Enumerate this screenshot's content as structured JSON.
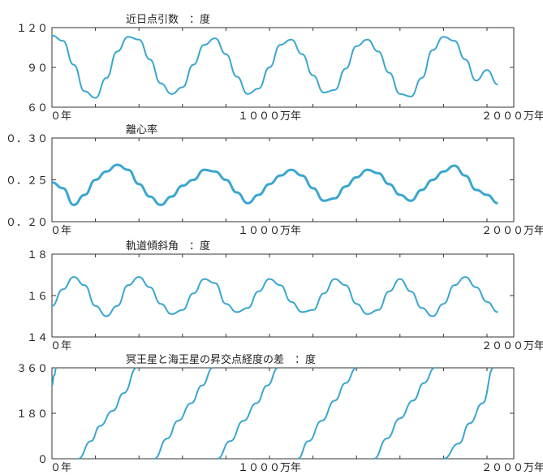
{
  "chart_data": [
    {
      "type": "line",
      "title": "近日点引数　：度",
      "ylim": [
        60,
        120
      ],
      "yticks": [
        {
          "v": 120,
          "label": "１２０"
        },
        {
          "v": 90,
          "label": "９０"
        },
        {
          "v": 60,
          "label": "６０"
        }
      ],
      "xlim": [
        0,
        2000
      ],
      "xticks": [
        {
          "v": 0,
          "label": "０年"
        },
        {
          "v": 1000,
          "label": "１０００万年"
        },
        {
          "v": 2000,
          "label": "２０００万年"
        }
      ],
      "series": [
        {
          "x": [
            0,
            50,
            100,
            150,
            200,
            250,
            300,
            350,
            400,
            450,
            500,
            550,
            600,
            650,
            700,
            750,
            800,
            850,
            900,
            950,
            1000,
            1050,
            1100,
            1150,
            1200,
            1250,
            1300,
            1350,
            1400,
            1450,
            1500,
            1550,
            1600,
            1650,
            1700,
            1750,
            1800,
            1850,
            1900,
            1950,
            2000,
            2050
          ],
          "values": [
            114,
            110,
            92,
            72,
            67,
            82,
            102,
            113,
            111,
            96,
            78,
            70,
            75,
            92,
            107,
            112,
            100,
            83,
            70,
            74,
            90,
            107,
            111,
            100,
            84,
            71,
            73,
            89,
            106,
            111,
            102,
            86,
            70,
            68,
            82,
            103,
            113,
            110,
            96,
            80,
            88,
            77
          ]
        }
      ]
    },
    {
      "type": "line",
      "title": "離心率",
      "ylim": [
        0.2,
        0.3
      ],
      "yticks": [
        {
          "v": 0.3,
          "label": "０．３０"
        },
        {
          "v": 0.25,
          "label": "０．２５"
        },
        {
          "v": 0.2,
          "label": "０．２０"
        }
      ],
      "xlim": [
        0,
        2000
      ],
      "xticks": [
        {
          "v": 0,
          "label": "０年"
        },
        {
          "v": 1000,
          "label": "１０００万年"
        },
        {
          "v": 2000,
          "label": "２０００万年"
        }
      ],
      "series": [
        {
          "x": [
            0,
            50,
            100,
            150,
            200,
            250,
            300,
            350,
            400,
            450,
            500,
            550,
            600,
            650,
            700,
            750,
            800,
            850,
            900,
            950,
            1000,
            1050,
            1100,
            1150,
            1200,
            1250,
            1300,
            1350,
            1400,
            1450,
            1500,
            1550,
            1600,
            1650,
            1700,
            1750,
            1800,
            1850,
            1900,
            1950,
            2000,
            2050
          ],
          "values": [
            0.247,
            0.24,
            0.22,
            0.232,
            0.25,
            0.26,
            0.268,
            0.262,
            0.245,
            0.23,
            0.22,
            0.23,
            0.243,
            0.25,
            0.262,
            0.26,
            0.25,
            0.235,
            0.222,
            0.232,
            0.245,
            0.255,
            0.262,
            0.255,
            0.24,
            0.225,
            0.228,
            0.242,
            0.253,
            0.262,
            0.258,
            0.245,
            0.232,
            0.225,
            0.238,
            0.25,
            0.26,
            0.267,
            0.255,
            0.238,
            0.232,
            0.222
          ]
        }
      ]
    },
    {
      "type": "line",
      "title": "軌道傾斜角　：度",
      "ylim": [
        14,
        18
      ],
      "yticks": [
        {
          "v": 18,
          "label": "１８"
        },
        {
          "v": 16,
          "label": "１６"
        },
        {
          "v": 14,
          "label": "１４"
        }
      ],
      "xlim": [
        0,
        2000
      ],
      "xticks": [
        {
          "v": 0,
          "label": "０年"
        },
        {
          "v": 2000,
          "label": "２０００万年"
        }
      ],
      "series": [
        {
          "x": [
            0,
            50,
            100,
            150,
            200,
            250,
            300,
            350,
            400,
            450,
            500,
            550,
            600,
            650,
            700,
            750,
            800,
            850,
            900,
            950,
            1000,
            1050,
            1100,
            1150,
            1200,
            1250,
            1300,
            1350,
            1400,
            1450,
            1500,
            1550,
            1600,
            1650,
            1700,
            1750,
            1800,
            1850,
            1900,
            1950,
            2000,
            2050
          ],
          "values": [
            15.5,
            16.3,
            16.9,
            16.5,
            15.5,
            15.0,
            15.5,
            16.5,
            16.9,
            16.4,
            15.6,
            15.1,
            15.3,
            16.1,
            16.8,
            16.6,
            15.6,
            15.2,
            15.4,
            16.2,
            16.8,
            16.5,
            15.7,
            15.2,
            15.3,
            16.1,
            16.8,
            16.5,
            15.6,
            15.1,
            15.3,
            16.2,
            16.8,
            16.2,
            15.4,
            15.0,
            15.6,
            16.5,
            16.9,
            16.4,
            15.7,
            15.2
          ]
        }
      ]
    },
    {
      "type": "line",
      "title": "冥王星と海王星の昇交点経度の差　：度",
      "ylim": [
        0,
        360
      ],
      "yticks": [
        {
          "v": 360,
          "label": "３６０"
        },
        {
          "v": 180,
          "label": "１８０"
        },
        {
          "v": 0,
          "label": "０"
        }
      ],
      "xlim": [
        0,
        2000
      ],
      "xticks": [
        {
          "v": 0,
          "label": "０年"
        },
        {
          "v": 1000,
          "label": "１０００万年"
        },
        {
          "v": 2000,
          "label": "２０００万年"
        }
      ],
      "series": [
        {
          "x": [
            0,
            10,
            20
          ],
          "values": [
            290,
            330,
            360
          ]
        },
        {
          "x": [
            120,
            180,
            220,
            280,
            330,
            390
          ],
          "values": [
            0,
            70,
            130,
            190,
            260,
            360
          ]
        },
        {
          "x": [
            470,
            530,
            580,
            640,
            690,
            740
          ],
          "values": [
            0,
            80,
            150,
            220,
            290,
            360
          ]
        },
        {
          "x": [
            760,
            820,
            880,
            940,
            990,
            1040
          ],
          "values": [
            0,
            70,
            150,
            220,
            290,
            360
          ]
        },
        {
          "x": [
            1130,
            1180,
            1240,
            1300,
            1350,
            1400
          ],
          "values": [
            0,
            70,
            150,
            230,
            300,
            360
          ]
        },
        {
          "x": [
            1480,
            1540,
            1600,
            1660,
            1710,
            1760
          ],
          "values": [
            0,
            80,
            160,
            230,
            300,
            360
          ]
        },
        {
          "x": [
            1800,
            1870,
            1920,
            1980,
            2030
          ],
          "values": [
            0,
            60,
            140,
            220,
            360
          ]
        }
      ]
    }
  ],
  "colors": {
    "line": "#3aa6cf",
    "frame": "#333333",
    "background": "#ffffff"
  }
}
